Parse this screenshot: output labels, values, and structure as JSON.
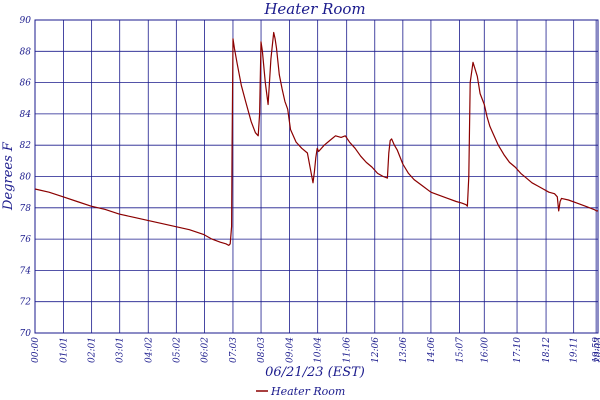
{
  "chart_data": {
    "type": "line",
    "title": "Heater Room",
    "xlabel": "06/21/23 (EST)",
    "ylabel": "Degrees F",
    "ylim": [
      70,
      90
    ],
    "y_ticks": [
      70,
      72,
      74,
      76,
      78,
      80,
      82,
      84,
      86,
      88,
      90
    ],
    "y_tick_labels": [
      "70",
      "72",
      "74",
      "76",
      "78",
      "80",
      "82",
      "84",
      "86",
      "88",
      "90"
    ],
    "x_ticks": [
      {
        "t": 0.0,
        "label": "00:00"
      },
      {
        "t": 1.0167,
        "label": "01:01"
      },
      {
        "t": 2.0167,
        "label": "02:01"
      },
      {
        "t": 3.0167,
        "label": "03:01"
      },
      {
        "t": 4.0333,
        "label": "04:02"
      },
      {
        "t": 5.0333,
        "label": "05:02"
      },
      {
        "t": 6.0333,
        "label": "06:02"
      },
      {
        "t": 7.05,
        "label": "07:03"
      },
      {
        "t": 8.05,
        "label": "08:03"
      },
      {
        "t": 9.0667,
        "label": "09:04"
      },
      {
        "t": 10.0667,
        "label": "10:04"
      },
      {
        "t": 11.1,
        "label": "11:06"
      },
      {
        "t": 12.1,
        "label": "12:06"
      },
      {
        "t": 13.1,
        "label": "13:06"
      },
      {
        "t": 14.1,
        "label": "14:06"
      },
      {
        "t": 15.1167,
        "label": "15:07"
      },
      {
        "t": 16.0,
        "label": "16:00"
      },
      {
        "t": 17.1667,
        "label": "17:10"
      },
      {
        "t": 18.2,
        "label": "18:12"
      },
      {
        "t": 19.1833,
        "label": "19:11"
      },
      {
        "t": 19.9833,
        "label": "19:59"
      },
      {
        "t": 20.05,
        "label": "20:03"
      }
    ],
    "xlim": [
      0,
      20.05
    ],
    "grid": true,
    "legend_position": "bottom",
    "colors": {
      "line": "#8b0000",
      "grid": "#1a1a8c",
      "text": "#1a1a8c"
    },
    "series": [
      {
        "name": "Heater Room",
        "x": [
          0.0,
          0.5,
          1.0,
          1.5,
          2.0,
          2.5,
          3.0,
          3.5,
          4.0,
          4.5,
          5.0,
          5.5,
          6.0,
          6.3,
          6.6,
          6.8,
          6.9,
          6.95,
          7.0,
          7.02,
          7.05,
          7.1,
          7.2,
          7.35,
          7.5,
          7.7,
          7.85,
          7.95,
          8.0,
          8.05,
          8.1,
          8.2,
          8.3,
          8.4,
          8.5,
          8.55,
          8.6,
          8.7,
          8.8,
          8.9,
          9.0,
          9.1,
          9.3,
          9.5,
          9.7,
          9.9,
          9.95,
          10.0,
          10.05,
          10.1,
          10.3,
          10.5,
          10.7,
          10.9,
          11.05,
          11.2,
          11.4,
          11.6,
          11.8,
          12.0,
          12.2,
          12.4,
          12.55,
          12.6,
          12.65,
          12.7,
          12.8,
          12.9,
          13.1,
          13.3,
          13.5,
          13.8,
          14.1,
          14.4,
          14.7,
          15.0,
          15.2,
          15.35,
          15.4,
          15.45,
          15.5,
          15.6,
          15.75,
          15.85,
          16.0,
          16.1,
          16.2,
          16.3,
          16.5,
          16.7,
          16.9,
          17.1,
          17.3,
          17.5,
          17.7,
          17.9,
          18.1,
          18.3,
          18.5,
          18.6,
          18.65,
          18.7,
          18.75,
          19.0,
          19.3,
          19.6,
          19.9,
          20.0,
          20.05
        ],
        "y": [
          79.2,
          79.0,
          78.7,
          78.4,
          78.1,
          77.9,
          77.6,
          77.4,
          77.2,
          77.0,
          76.8,
          76.6,
          76.3,
          76.0,
          75.8,
          75.7,
          75.6,
          75.7,
          76.8,
          82.0,
          88.8,
          88.2,
          87.2,
          85.8,
          84.8,
          83.5,
          82.8,
          82.6,
          84.0,
          88.6,
          88.0,
          86.0,
          84.6,
          87.5,
          89.2,
          88.8,
          88.2,
          86.5,
          85.6,
          84.8,
          84.3,
          83.0,
          82.2,
          81.8,
          81.5,
          79.6,
          80.3,
          81.2,
          81.8,
          81.6,
          82.0,
          82.3,
          82.6,
          82.5,
          82.6,
          82.2,
          81.8,
          81.3,
          80.9,
          80.6,
          80.2,
          80.0,
          79.9,
          81.5,
          82.3,
          82.4,
          82.0,
          81.7,
          80.8,
          80.2,
          79.8,
          79.4,
          79.0,
          78.8,
          78.6,
          78.4,
          78.3,
          78.2,
          78.1,
          80.0,
          86.0,
          87.3,
          86.4,
          85.3,
          84.6,
          83.8,
          83.2,
          82.8,
          82.0,
          81.4,
          80.9,
          80.6,
          80.2,
          79.9,
          79.6,
          79.4,
          79.2,
          79.0,
          78.9,
          78.7,
          77.8,
          78.4,
          78.6,
          78.5,
          78.3,
          78.1,
          77.9,
          77.8,
          77.8
        ]
      }
    ]
  }
}
